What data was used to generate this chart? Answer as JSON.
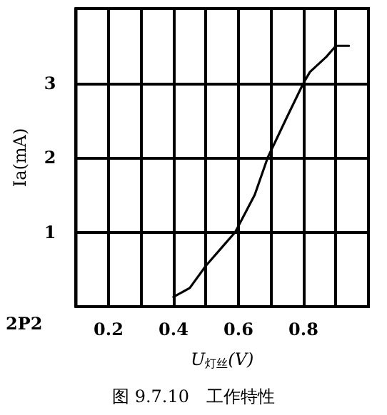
{
  "chart_data": {
    "type": "line",
    "title": "图 9.7.10　工作特性",
    "xlabel": "U$_{灯丝}$(V)",
    "ylabel": "Ia(mA)",
    "annotations": [
      "2P2"
    ],
    "x": [
      0.4,
      0.45,
      0.5,
      0.55,
      0.59,
      0.65,
      0.69,
      0.75,
      0.8,
      0.82,
      0.87,
      0.9,
      0.94
    ],
    "series": [
      {
        "color": "#000000",
        "values": [
          0.13,
          0.25,
          0.55,
          0.8,
          1.0,
          1.5,
          2.0,
          2.55,
          3.0,
          3.15,
          3.35,
          3.5,
          3.5
        ]
      }
    ],
    "xlim": [
      0.1,
      1.0
    ],
    "ylim": [
      0,
      4
    ],
    "xticks": [
      {
        "value": 0.1,
        "label": null
      },
      0.2,
      {
        "value": 0.3,
        "label": null
      },
      0.4,
      {
        "value": 0.5,
        "label": null
      },
      0.6,
      {
        "value": 0.7,
        "label": null
      },
      0.8,
      {
        "value": 0.9,
        "label": null
      },
      {
        "value": 1.0,
        "label": null
      }
    ],
    "yticks": [
      {
        "value": 0,
        "label": null
      },
      1,
      2,
      3,
      {
        "value": 4,
        "label": null
      }
    ],
    "grid": true,
    "marker": "none",
    "line_style": "solid"
  }
}
